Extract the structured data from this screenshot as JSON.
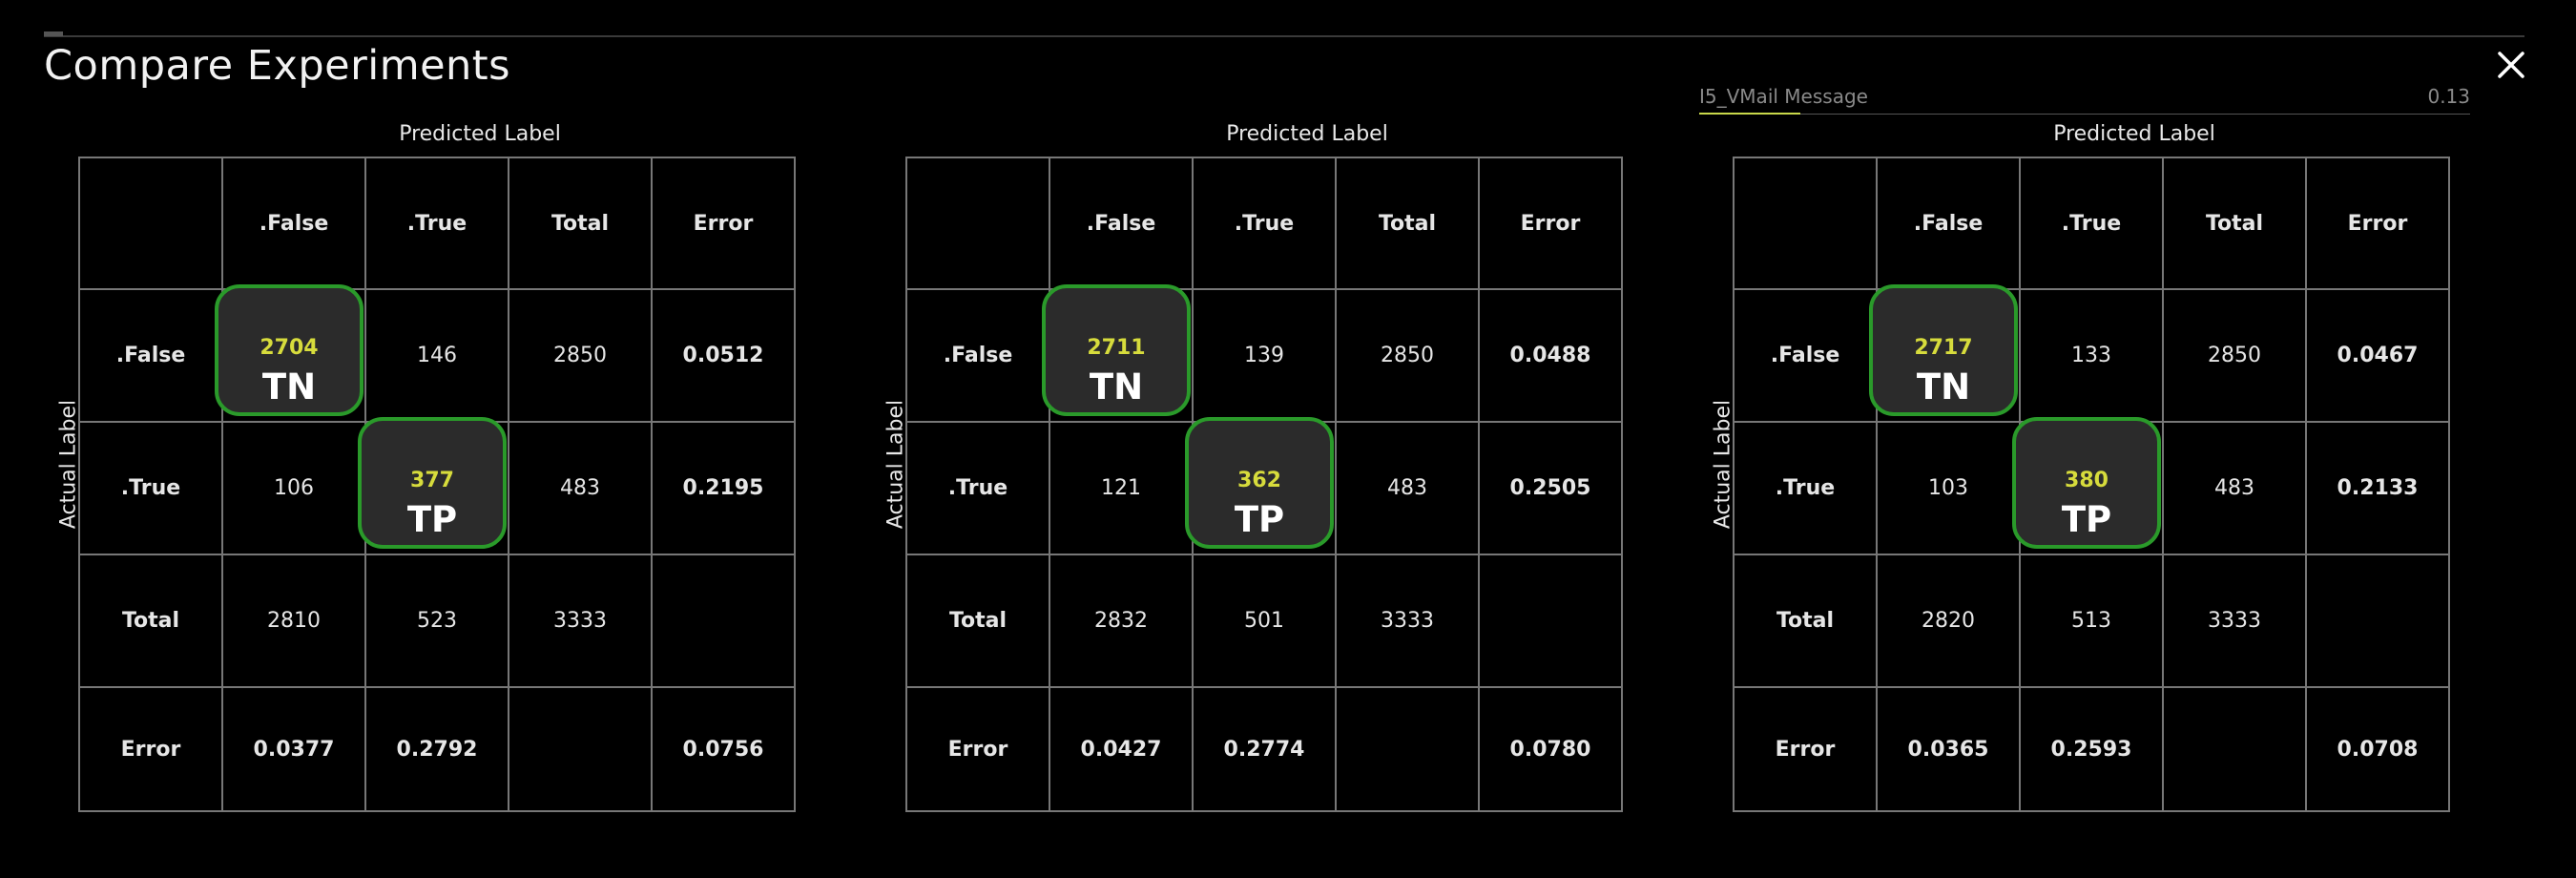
{
  "title": "Compare Experiments",
  "background_strip": {
    "label": "I5_VMail Message",
    "value": "0.13",
    "bar_color": "#c8d84a"
  },
  "axis": {
    "predicted": "Predicted Label",
    "actual": "Actual Label"
  },
  "headers": {
    "corner": "",
    "col_false": ".False",
    "col_true": ".True",
    "col_total": "Total",
    "col_error": "Error",
    "row_false": ".False",
    "row_true": ".True",
    "row_total": "Total",
    "row_error": "Error"
  },
  "tags": {
    "tn": "TN",
    "tp": "TP"
  },
  "colors": {
    "highlight_border": "#2a9a2a",
    "highlight_value": "#d7dc3c",
    "background": "#000000"
  },
  "panels": [
    {
      "tn": "2704",
      "fp": "146",
      "row_false_total": "2850",
      "row_false_error": "0.0512",
      "fn": "106",
      "tp": "377",
      "row_true_total": "483",
      "row_true_error": "0.2195",
      "col_false_total": "2810",
      "col_true_total": "523",
      "grand_total": "3333",
      "col_false_error": "0.0377",
      "col_true_error": "0.2792",
      "overall_error": "0.0756"
    },
    {
      "tn": "2711",
      "fp": "139",
      "row_false_total": "2850",
      "row_false_error": "0.0488",
      "fn": "121",
      "tp": "362",
      "row_true_total": "483",
      "row_true_error": "0.2505",
      "col_false_total": "2832",
      "col_true_total": "501",
      "grand_total": "3333",
      "col_false_error": "0.0427",
      "col_true_error": "0.2774",
      "overall_error": "0.0780"
    },
    {
      "tn": "2717",
      "fp": "133",
      "row_false_total": "2850",
      "row_false_error": "0.0467",
      "fn": "103",
      "tp": "380",
      "row_true_total": "483",
      "row_true_error": "0.2133",
      "col_false_total": "2820",
      "col_true_total": "513",
      "grand_total": "3333",
      "col_false_error": "0.0365",
      "col_true_error": "0.2593",
      "overall_error": "0.0708"
    }
  ]
}
